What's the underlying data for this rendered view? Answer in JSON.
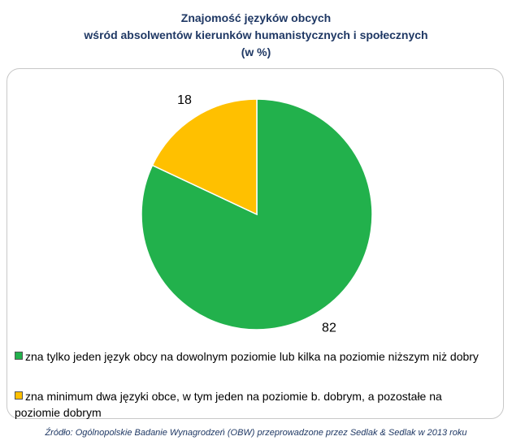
{
  "title": {
    "line1": "Znajomość języków obcych",
    "line2": "wśród absolwentów kierunków humanistycznych i społecznych",
    "line3": "(w %)"
  },
  "chart_data": {
    "type": "pie",
    "slices": [
      {
        "label": "zna tylko jeden język obcy na dowolnym poziomie lub kilka na poziomie niższym niż dobry",
        "value": 82,
        "color": "#22b14c"
      },
      {
        "label": "zna minimum dwa języki obce, w tym jeden na poziomie b. dobrym, a pozostałe na poziomie dobrym",
        "value": 18,
        "color": "#ffc000"
      }
    ],
    "data_labels": [
      "82",
      "18"
    ],
    "legend_position": "bottom",
    "start_angle": "top",
    "direction": "clockwise"
  },
  "legend": {
    "item1": "zna tylko jeden język obcy na dowolnym poziomie lub kilka na poziomie niższym niż dobry",
    "item2_line1": "zna minimum dwa języki obce, w tym jeden na poziomie b. dobrym, a pozostałe na",
    "item2_line2": "poziomie dobrym"
  },
  "source": "Źródło: Ogólnopolskie Badanie Wynagrodzeń (OBW) przeprowadzone  przez  Sedlak & Sedlak w 2013 roku"
}
